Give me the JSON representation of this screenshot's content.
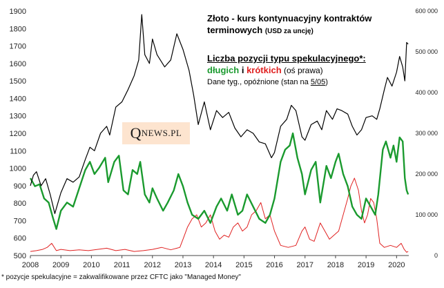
{
  "annotation": {
    "title_main": "Złoto - kurs kontynuacyjny kontraktów terminowych",
    "title_unit": "(USD za uncję)",
    "positions_title": "Liczba pozycji typu spekulacyjnego*:",
    "long_word": "długich",
    "connector": " i ",
    "short_word": "krótkich",
    "axis_note": " (oś prawa)",
    "data_note_prefix": "Dane tyg.,  opóźnione (stan na ",
    "data_note_date": "5/05",
    "data_note_suffix": ")"
  },
  "logo": {
    "big_letter": "Q",
    "rest": "NEWS.PL"
  },
  "footnote": "* pozycje spekulacyjne = zakwalifikowane przez CFTC jako \"Managed Money\"",
  "colors": {
    "price": "#000000",
    "long": "#1a9a2e",
    "short": "#e02020",
    "logo_bg": "#fde4cf"
  },
  "chart_data": {
    "type": "line",
    "title": "Złoto - kurs kontynuacyjny kontraktów terminowych (USD za uncję)",
    "x_ticks": [
      "2008",
      "2009",
      "2010",
      "2011",
      "2012",
      "2013",
      "2014",
      "2015",
      "2016",
      "2017",
      "2018",
      "2019",
      "2020"
    ],
    "xlim": [
      2008.0,
      2020.4
    ],
    "ylim_left": [
      500,
      1900
    ],
    "y_ticks_left": [
      "500",
      "600",
      "700",
      "800",
      "900",
      "1000",
      "1100",
      "1200",
      "1300",
      "1400",
      "1500",
      "1600",
      "1700",
      "1800",
      "1900"
    ],
    "ylim_right": [
      0,
      600000
    ],
    "y_ticks_right": [
      "0",
      "100 000",
      "200 000",
      "300 000",
      "400 000",
      "500 000",
      "600 000"
    ],
    "series": [
      {
        "name": "Złoto - kurs kontynuacyjny",
        "axis": "left",
        "points": [
          [
            2008.0,
            900
          ],
          [
            2008.1,
            960
          ],
          [
            2008.2,
            980
          ],
          [
            2008.35,
            900
          ],
          [
            2008.5,
            940
          ],
          [
            2008.65,
            850
          ],
          [
            2008.8,
            740
          ],
          [
            2008.9,
            800
          ],
          [
            2009.0,
            860
          ],
          [
            2009.2,
            940
          ],
          [
            2009.4,
            920
          ],
          [
            2009.6,
            950
          ],
          [
            2009.8,
            1050
          ],
          [
            2009.95,
            1120
          ],
          [
            2010.1,
            1100
          ],
          [
            2010.3,
            1200
          ],
          [
            2010.5,
            1240
          ],
          [
            2010.6,
            1190
          ],
          [
            2010.8,
            1350
          ],
          [
            2011.0,
            1380
          ],
          [
            2011.2,
            1450
          ],
          [
            2011.4,
            1530
          ],
          [
            2011.55,
            1620
          ],
          [
            2011.65,
            1880
          ],
          [
            2011.75,
            1650
          ],
          [
            2011.9,
            1600
          ],
          [
            2012.0,
            1740
          ],
          [
            2012.15,
            1650
          ],
          [
            2012.4,
            1580
          ],
          [
            2012.6,
            1620
          ],
          [
            2012.8,
            1770
          ],
          [
            2013.0,
            1680
          ],
          [
            2013.2,
            1560
          ],
          [
            2013.35,
            1420
          ],
          [
            2013.5,
            1250
          ],
          [
            2013.7,
            1380
          ],
          [
            2013.9,
            1220
          ],
          [
            2014.1,
            1330
          ],
          [
            2014.3,
            1290
          ],
          [
            2014.5,
            1320
          ],
          [
            2014.7,
            1230
          ],
          [
            2014.9,
            1180
          ],
          [
            2015.1,
            1220
          ],
          [
            2015.3,
            1200
          ],
          [
            2015.5,
            1150
          ],
          [
            2015.7,
            1140
          ],
          [
            2015.9,
            1060
          ],
          [
            2016.0,
            1090
          ],
          [
            2016.2,
            1240
          ],
          [
            2016.4,
            1280
          ],
          [
            2016.55,
            1360
          ],
          [
            2016.7,
            1330
          ],
          [
            2016.9,
            1180
          ],
          [
            2017.0,
            1160
          ],
          [
            2017.2,
            1250
          ],
          [
            2017.4,
            1270
          ],
          [
            2017.55,
            1220
          ],
          [
            2017.7,
            1330
          ],
          [
            2017.9,
            1280
          ],
          [
            2018.05,
            1340
          ],
          [
            2018.2,
            1330
          ],
          [
            2018.4,
            1310
          ],
          [
            2018.55,
            1240
          ],
          [
            2018.7,
            1190
          ],
          [
            2018.85,
            1220
          ],
          [
            2019.0,
            1290
          ],
          [
            2019.2,
            1300
          ],
          [
            2019.35,
            1280
          ],
          [
            2019.45,
            1340
          ],
          [
            2019.6,
            1450
          ],
          [
            2019.7,
            1520
          ],
          [
            2019.85,
            1470
          ],
          [
            2020.0,
            1550
          ],
          [
            2020.1,
            1640
          ],
          [
            2020.2,
            1580
          ],
          [
            2020.27,
            1500
          ],
          [
            2020.33,
            1720
          ],
          [
            2020.38,
            1710
          ]
        ]
      },
      {
        "name": "długich",
        "axis": "right",
        "points": [
          [
            2008.0,
            190000
          ],
          [
            2008.15,
            170000
          ],
          [
            2008.3,
            175000
          ],
          [
            2008.45,
            140000
          ],
          [
            2008.6,
            130000
          ],
          [
            2008.75,
            90000
          ],
          [
            2008.85,
            65000
          ],
          [
            2009.0,
            110000
          ],
          [
            2009.2,
            130000
          ],
          [
            2009.4,
            120000
          ],
          [
            2009.6,
            165000
          ],
          [
            2009.8,
            210000
          ],
          [
            2009.95,
            230000
          ],
          [
            2010.1,
            200000
          ],
          [
            2010.25,
            215000
          ],
          [
            2010.45,
            240000
          ],
          [
            2010.55,
            180000
          ],
          [
            2010.75,
            230000
          ],
          [
            2010.9,
            245000
          ],
          [
            2011.05,
            160000
          ],
          [
            2011.2,
            150000
          ],
          [
            2011.35,
            210000
          ],
          [
            2011.5,
            200000
          ],
          [
            2011.6,
            230000
          ],
          [
            2011.75,
            150000
          ],
          [
            2011.9,
            130000
          ],
          [
            2012.0,
            165000
          ],
          [
            2012.15,
            140000
          ],
          [
            2012.35,
            110000
          ],
          [
            2012.5,
            130000
          ],
          [
            2012.7,
            160000
          ],
          [
            2012.85,
            200000
          ],
          [
            2013.0,
            170000
          ],
          [
            2013.15,
            130000
          ],
          [
            2013.3,
            100000
          ],
          [
            2013.5,
            90000
          ],
          [
            2013.7,
            110000
          ],
          [
            2013.9,
            80000
          ],
          [
            2014.1,
            120000
          ],
          [
            2014.25,
            140000
          ],
          [
            2014.45,
            110000
          ],
          [
            2014.6,
            150000
          ],
          [
            2014.8,
            100000
          ],
          [
            2014.95,
            110000
          ],
          [
            2015.1,
            150000
          ],
          [
            2015.3,
            120000
          ],
          [
            2015.5,
            90000
          ],
          [
            2015.7,
            80000
          ],
          [
            2015.85,
            100000
          ],
          [
            2016.0,
            140000
          ],
          [
            2016.2,
            230000
          ],
          [
            2016.35,
            260000
          ],
          [
            2016.5,
            270000
          ],
          [
            2016.6,
            300000
          ],
          [
            2016.75,
            240000
          ],
          [
            2016.9,
            200000
          ],
          [
            2017.0,
            150000
          ],
          [
            2017.2,
            210000
          ],
          [
            2017.35,
            230000
          ],
          [
            2017.5,
            130000
          ],
          [
            2017.7,
            220000
          ],
          [
            2017.85,
            190000
          ],
          [
            2018.0,
            230000
          ],
          [
            2018.1,
            250000
          ],
          [
            2018.25,
            200000
          ],
          [
            2018.4,
            170000
          ],
          [
            2018.55,
            120000
          ],
          [
            2018.7,
            100000
          ],
          [
            2018.85,
            90000
          ],
          [
            2019.0,
            140000
          ],
          [
            2019.15,
            120000
          ],
          [
            2019.3,
            100000
          ],
          [
            2019.4,
            150000
          ],
          [
            2019.55,
            260000
          ],
          [
            2019.65,
            280000
          ],
          [
            2019.8,
            240000
          ],
          [
            2019.9,
            270000
          ],
          [
            2020.0,
            230000
          ],
          [
            2020.1,
            290000
          ],
          [
            2020.2,
            280000
          ],
          [
            2020.27,
            190000
          ],
          [
            2020.33,
            160000
          ],
          [
            2020.38,
            150000
          ]
        ]
      },
      {
        "name": "krótkich",
        "axis": "right",
        "points": [
          [
            2008.0,
            10000
          ],
          [
            2008.2,
            12000
          ],
          [
            2008.4,
            15000
          ],
          [
            2008.55,
            20000
          ],
          [
            2008.7,
            30000
          ],
          [
            2008.85,
            12000
          ],
          [
            2009.0,
            15000
          ],
          [
            2009.3,
            12000
          ],
          [
            2009.6,
            14000
          ],
          [
            2009.9,
            12000
          ],
          [
            2010.2,
            15000
          ],
          [
            2010.5,
            18000
          ],
          [
            2010.8,
            12000
          ],
          [
            2011.1,
            15000
          ],
          [
            2011.4,
            10000
          ],
          [
            2011.7,
            12000
          ],
          [
            2012.0,
            15000
          ],
          [
            2012.3,
            20000
          ],
          [
            2012.6,
            14000
          ],
          [
            2012.9,
            20000
          ],
          [
            2013.0,
            40000
          ],
          [
            2013.15,
            70000
          ],
          [
            2013.3,
            90000
          ],
          [
            2013.45,
            100000
          ],
          [
            2013.6,
            70000
          ],
          [
            2013.75,
            80000
          ],
          [
            2013.9,
            100000
          ],
          [
            2014.05,
            60000
          ],
          [
            2014.2,
            40000
          ],
          [
            2014.35,
            50000
          ],
          [
            2014.5,
            45000
          ],
          [
            2014.65,
            70000
          ],
          [
            2014.8,
            80000
          ],
          [
            2014.95,
            60000
          ],
          [
            2015.1,
            70000
          ],
          [
            2015.25,
            100000
          ],
          [
            2015.4,
            110000
          ],
          [
            2015.55,
            130000
          ],
          [
            2015.7,
            90000
          ],
          [
            2015.85,
            100000
          ],
          [
            2016.0,
            60000
          ],
          [
            2016.2,
            25000
          ],
          [
            2016.45,
            20000
          ],
          [
            2016.7,
            25000
          ],
          [
            2016.9,
            60000
          ],
          [
            2017.0,
            70000
          ],
          [
            2017.15,
            40000
          ],
          [
            2017.3,
            35000
          ],
          [
            2017.5,
            80000
          ],
          [
            2017.65,
            60000
          ],
          [
            2017.8,
            40000
          ],
          [
            2017.95,
            50000
          ],
          [
            2018.1,
            60000
          ],
          [
            2018.25,
            100000
          ],
          [
            2018.4,
            140000
          ],
          [
            2018.5,
            170000
          ],
          [
            2018.62,
            190000
          ],
          [
            2018.75,
            160000
          ],
          [
            2018.85,
            110000
          ],
          [
            2018.95,
            80000
          ],
          [
            2019.05,
            100000
          ],
          [
            2019.15,
            140000
          ],
          [
            2019.25,
            130000
          ],
          [
            2019.35,
            90000
          ],
          [
            2019.45,
            30000
          ],
          [
            2019.6,
            20000
          ],
          [
            2019.8,
            25000
          ],
          [
            2020.0,
            20000
          ],
          [
            2020.15,
            30000
          ],
          [
            2020.25,
            15000
          ],
          [
            2020.33,
            8000
          ],
          [
            2020.38,
            10000
          ]
        ]
      }
    ]
  }
}
